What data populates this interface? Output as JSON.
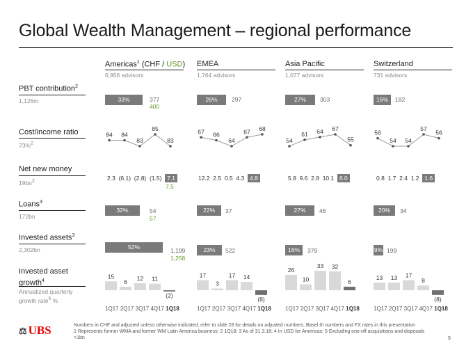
{
  "title": "Global Wealth Management – regional performance",
  "columns": [
    {
      "name": "Americas",
      "name_sup": "1",
      "currency_prefix": "(CHF / ",
      "currency_usd": "USD",
      "currency_suffix": ")",
      "advisors": "6,956 advisors"
    },
    {
      "name": "EMEA",
      "name_sup": "",
      "advisors": "1,764 advisors"
    },
    {
      "name": "Asia Pacific",
      "name_sup": "",
      "advisors": "1,077 advisors"
    },
    {
      "name": "Switzerland",
      "name_sup": "",
      "advisors": "731 advisors"
    }
  ],
  "rows": {
    "pbt": {
      "label": "PBT contribution",
      "sup": "2",
      "sub": "1,126m"
    },
    "cir": {
      "label": "Cost/income ratio",
      "sub": "73%",
      "sub_sup": "2"
    },
    "nnm": {
      "label": "Net new money",
      "sub": "19bn",
      "sub_sup": "2"
    },
    "loans": {
      "label": "Loans",
      "sup": "3",
      "sub": "172bn"
    },
    "ia": {
      "label": "Invested assets",
      "sup": "3",
      "sub": "2,302bn"
    },
    "iag": {
      "label": "Invested asset growth",
      "sup": "4",
      "sub_line1": "Annualized quarterly",
      "sub_line2": "growth rate",
      "sub_sup": "5",
      "sub_tail": " %"
    }
  },
  "pbt_contribution": [
    {
      "share": "33%",
      "share_pct": 33,
      "value": "377",
      "usd_value": "400"
    },
    {
      "share": "26%",
      "share_pct": 26,
      "value": "297",
      "usd_value": ""
    },
    {
      "share": "27%",
      "share_pct": 27,
      "value": "303",
      "usd_value": ""
    },
    {
      "share": "16%",
      "share_pct": 16,
      "value": "182",
      "usd_value": ""
    }
  ],
  "loans": [
    {
      "share": "32%",
      "share_pct": 32,
      "value": "54",
      "usd_value": "57"
    },
    {
      "share": "22%",
      "share_pct": 22,
      "value": "37",
      "usd_value": ""
    },
    {
      "share": "27%",
      "share_pct": 27,
      "value": "46",
      "usd_value": ""
    },
    {
      "share": "20%",
      "share_pct": 20,
      "value": "34",
      "usd_value": ""
    }
  ],
  "invested_assets": [
    {
      "share": "52%",
      "share_pct": 52,
      "value": "1,199",
      "usd_value": "1,258"
    },
    {
      "share": "23%",
      "share_pct": 23,
      "value": "522",
      "usd_value": ""
    },
    {
      "share": "16%",
      "share_pct": 16,
      "value": "379",
      "usd_value": ""
    },
    {
      "share": "9%",
      "share_pct": 9,
      "value": "199",
      "usd_value": ""
    }
  ],
  "net_new_money": [
    {
      "values": [
        "2.3",
        "(6.1)",
        "(2.8)",
        "(1.5)"
      ],
      "latest": "7.1",
      "latest_usd": "7.5"
    },
    {
      "values": [
        "12.2",
        "2.5",
        "0.5",
        "4.3"
      ],
      "latest": "4.8",
      "latest_usd": ""
    },
    {
      "values": [
        "5.8",
        "9.6",
        "2.8",
        "10.1"
      ],
      "latest": "6.0",
      "latest_usd": ""
    },
    {
      "values": [
        "0.8",
        "1.7",
        "2.4",
        "1.2"
      ],
      "latest": "1.6",
      "latest_usd": ""
    }
  ],
  "quarters": [
    "1Q17",
    "2Q17",
    "3Q17",
    "4Q17"
  ],
  "quarter_latest": "1Q18",
  "chart_data": [
    {
      "type": "line",
      "title": "Cost/income ratio",
      "region": "Americas",
      "x": [
        "1Q17",
        "2Q17",
        "3Q17",
        "4Q17",
        "1Q18"
      ],
      "values": [
        84,
        84,
        83,
        85,
        83
      ],
      "labels": [
        "84",
        "84",
        "83",
        "85",
        "83"
      ]
    },
    {
      "type": "line",
      "title": "Cost/income ratio",
      "region": "EMEA",
      "x": [
        "1Q17",
        "2Q17",
        "3Q17",
        "4Q17",
        "1Q18"
      ],
      "values": [
        67,
        66,
        64,
        67,
        68
      ],
      "labels": [
        "67",
        "66",
        "64",
        "67",
        "68"
      ]
    },
    {
      "type": "line",
      "title": "Cost/income ratio",
      "region": "Asia Pacific",
      "x": [
        "1Q17",
        "2Q17",
        "3Q17",
        "4Q17",
        "1Q18"
      ],
      "values": [
        54,
        61,
        64,
        67,
        55
      ],
      "labels": [
        "54",
        "61",
        "64",
        "67",
        "55"
      ]
    },
    {
      "type": "line",
      "title": "Cost/income ratio",
      "region": "Switzerland",
      "x": [
        "1Q17",
        "2Q17",
        "3Q17",
        "4Q17",
        "1Q18"
      ],
      "values": [
        56,
        54,
        54,
        57,
        56
      ],
      "labels": [
        "56",
        "54",
        "54",
        "57",
        "56"
      ]
    },
    {
      "type": "bar",
      "title": "Invested asset growth",
      "region": "Americas",
      "categories": [
        "1Q17",
        "2Q17",
        "3Q17",
        "4Q17",
        "1Q18"
      ],
      "values": [
        15,
        6,
        12,
        11,
        -2
      ],
      "labels": [
        "15",
        "6",
        "12",
        "11",
        "(2)"
      ]
    },
    {
      "type": "bar",
      "title": "Invested asset growth",
      "region": "EMEA",
      "categories": [
        "1Q17",
        "2Q17",
        "3Q17",
        "4Q17",
        "1Q18"
      ],
      "values": [
        17,
        3,
        17,
        14,
        -8
      ],
      "labels": [
        "17",
        "3",
        "17",
        "14",
        "(8)"
      ]
    },
    {
      "type": "bar",
      "title": "Invested asset growth",
      "region": "Asia Pacific",
      "categories": [
        "1Q17",
        "2Q17",
        "3Q17",
        "4Q17",
        "1Q18"
      ],
      "values": [
        26,
        10,
        33,
        32,
        6
      ],
      "labels": [
        "26",
        "10",
        "33",
        "32",
        "6"
      ]
    },
    {
      "type": "bar",
      "title": "Invested asset growth",
      "region": "Switzerland",
      "categories": [
        "1Q17",
        "2Q17",
        "3Q17",
        "4Q17",
        "1Q18"
      ],
      "values": [
        13,
        13,
        17,
        8,
        -8
      ],
      "labels": [
        "13",
        "13",
        "17",
        "8",
        "(8)"
      ]
    }
  ],
  "footnotes": {
    "line1": "Numbers in CHF and adjusted unless otherwise indicated; refer to slide 28 for details on adjusted numbers, Basel III numbers and FX rates in this presentation",
    "line2": "1 Represents former WMA and former WM Latin America business; 2 1Q18; 3 As of 31.3.18; 4 In USD for Americas; 5 Excluding one-off acquisitions and disposals >1bn"
  },
  "logo": {
    "text": "UBS",
    "icon": "ubs-keys-icon"
  },
  "page_number": "9",
  "colors": {
    "bar": "#7a7a7a",
    "usd": "#6b9a2e",
    "line": "#9a9a9a",
    "marker": "#555555",
    "logo": "#e60000"
  }
}
